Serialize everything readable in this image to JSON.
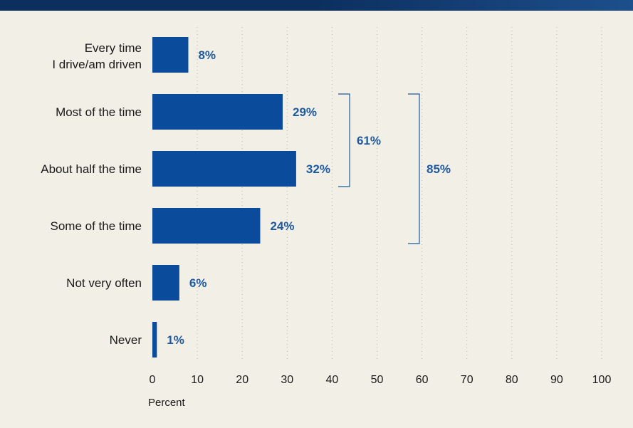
{
  "colors": {
    "bar": "#0a4b9b",
    "value_label": "#1f5aa0",
    "background": "#f1efe6",
    "top_bar": "#0c2f5f"
  },
  "chart_data": {
    "type": "bar",
    "orientation": "horizontal",
    "categories": [
      [
        "Every time",
        "I drive/am driven"
      ],
      [
        "Most of the time"
      ],
      [
        "About half the time"
      ],
      [
        "Some of the time"
      ],
      [
        "Not very often"
      ],
      [
        "Never"
      ]
    ],
    "values": [
      8,
      29,
      32,
      24,
      6,
      1
    ],
    "value_labels": [
      "8%",
      "29%",
      "32%",
      "24%",
      "6%",
      "1%"
    ],
    "xlabel": "Percent",
    "xlim": [
      0,
      100
    ],
    "xticks": [
      0,
      10,
      20,
      30,
      40,
      50,
      60,
      70,
      80,
      90,
      100
    ],
    "grid": "vertical dotted",
    "brackets": [
      {
        "from_category": 1,
        "to_category": 2,
        "label": "61%"
      },
      {
        "from_category": 1,
        "to_category": 3,
        "label": "85%"
      }
    ]
  }
}
